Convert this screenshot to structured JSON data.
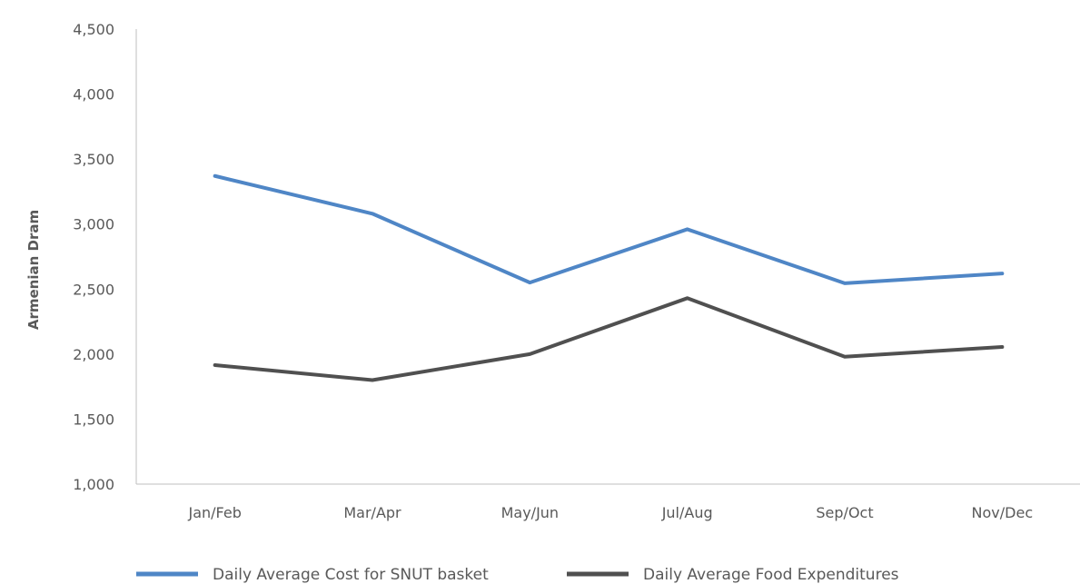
{
  "chart_data": {
    "type": "line",
    "title": "",
    "xlabel": "",
    "ylabel": "Armenian Dram",
    "ylim": [
      1000,
      4500
    ],
    "yticks": [
      1000,
      1500,
      2000,
      2500,
      3000,
      3500,
      4000,
      4500
    ],
    "ytick_labels": [
      "1,000",
      "1,500",
      "2,000",
      "2,500",
      "3,000",
      "3,500",
      "4,000",
      "4,500"
    ],
    "categories": [
      "Jan/Feb",
      "Mar/Apr",
      "May/Jun",
      "Jul/Aug",
      "Sep/Oct",
      "Nov/Dec"
    ],
    "grid": false,
    "legend_position": "bottom",
    "series": [
      {
        "name": "Daily Average Cost for SNUT basket",
        "color": "#4f86c6",
        "values": [
          3370,
          3080,
          2550,
          2960,
          2545,
          2620
        ]
      },
      {
        "name": "Daily Average Food Expenditures",
        "color": "#505050",
        "values": [
          1915,
          1800,
          2000,
          2430,
          1980,
          2055
        ]
      }
    ]
  }
}
